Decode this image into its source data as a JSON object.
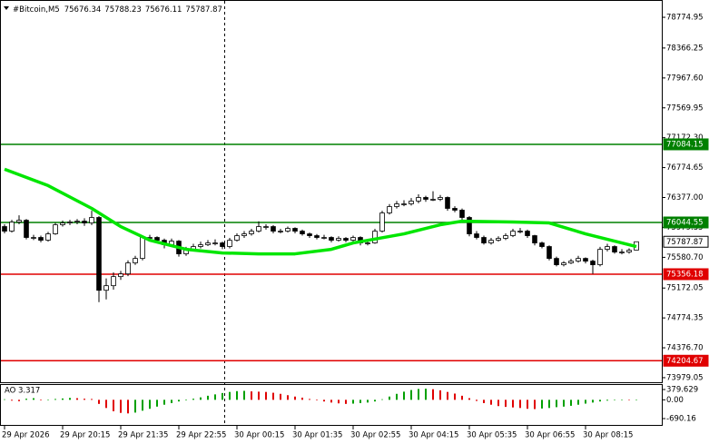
{
  "chart_data": {
    "type": "candlestick",
    "title": "#Bitcoin,M5",
    "xlim": [
      -0.625,
      90.5
    ],
    "ylim": [
      73918,
      78993
    ],
    "xticks": [
      {
        "value": 0,
        "label": "29 Apr 2026"
      },
      {
        "value": 8,
        "label": "29 Apr 20:15"
      },
      {
        "value": 16,
        "label": "29 Apr 21:35"
      },
      {
        "value": 24,
        "label": "29 Apr 22:55"
      },
      {
        "value": 32,
        "label": "30 Apr 00:15"
      },
      {
        "value": 40,
        "label": "30 Apr 01:35"
      },
      {
        "value": 48,
        "label": "30 Apr 02:55"
      },
      {
        "value": 56,
        "label": "30 Apr 04:15"
      },
      {
        "value": 64,
        "label": "30 Apr 05:35"
      },
      {
        "value": 72,
        "label": "30 Apr 06:55"
      },
      {
        "value": 80,
        "label": "30 Apr 08:15"
      }
    ],
    "yticks": [
      78774.95,
      78366.25,
      {
        "value": 77967.6,
        "label": "77967.60"
      },
      77569.95,
      {
        "value": 77172.3,
        "label": "77172.30"
      },
      76774.65,
      {
        "value": 76377,
        "label": "76377.00"
      },
      75979.35,
      {
        "value": 75580.7,
        "label": "75580.70"
      },
      75172.05,
      74774.35,
      {
        "value": 74376.7,
        "label": "74376.70"
      },
      73979.05
    ],
    "bull_color": "#ffffff",
    "bear_color": "#000000",
    "candles": [
      [
        75990,
        76020,
        75900,
        75929
      ],
      [
        75929,
        76080,
        75910,
        76050
      ],
      [
        76050,
        76140,
        76020,
        76074
      ],
      [
        76074,
        76090,
        75820,
        75845
      ],
      [
        75845,
        75880,
        75810,
        75845
      ],
      [
        75845,
        75870,
        75780,
        75808
      ],
      [
        75808,
        75920,
        75790,
        75893
      ],
      [
        75893,
        76040,
        75880,
        76014
      ],
      [
        76014,
        76070,
        75990,
        76038
      ],
      [
        76038,
        76080,
        76010,
        76050
      ],
      [
        76050,
        76090,
        76020,
        76062
      ],
      [
        76062,
        76100,
        76000,
        76038
      ],
      [
        76038,
        76200,
        76010,
        76111
      ],
      [
        76111,
        76130,
        74985,
        75142
      ],
      [
        75142,
        75300,
        75020,
        75203
      ],
      [
        75203,
        75380,
        75150,
        75324
      ],
      [
        75324,
        75400,
        75280,
        75360
      ],
      [
        75360,
        75540,
        75330,
        75506
      ],
      [
        75506,
        75600,
        75480,
        75566
      ],
      [
        75566,
        75870,
        75540,
        75845
      ],
      [
        75845,
        75880,
        75800,
        75845
      ],
      [
        75845,
        75860,
        75770,
        75808
      ],
      [
        75808,
        75830,
        75700,
        75748
      ],
      [
        75748,
        75830,
        75720,
        75796
      ],
      [
        75796,
        75810,
        75590,
        75627
      ],
      [
        75627,
        75720,
        75600,
        75687
      ],
      [
        75687,
        75760,
        75660,
        75724
      ],
      [
        75724,
        75790,
        75700,
        75748
      ],
      [
        75748,
        75810,
        75730,
        75772
      ],
      [
        75772,
        75820,
        75740,
        75772
      ],
      [
        75772,
        75790,
        75690,
        75724
      ],
      [
        75724,
        75840,
        75700,
        75808
      ],
      [
        75808,
        75900,
        75790,
        75869
      ],
      [
        75869,
        75930,
        75840,
        75893
      ],
      [
        75893,
        75960,
        75870,
        75929
      ],
      [
        75929,
        76060,
        75910,
        75990
      ],
      [
        75990,
        76020,
        75950,
        75990
      ],
      [
        75990,
        76010,
        75900,
        75929
      ],
      [
        75929,
        75960,
        75900,
        75929
      ],
      [
        75929,
        75990,
        75910,
        75966
      ],
      [
        75966,
        75980,
        75900,
        75929
      ],
      [
        75929,
        75950,
        75870,
        75893
      ],
      [
        75893,
        75910,
        75840,
        75869
      ],
      [
        75869,
        75890,
        75820,
        75845
      ],
      [
        75845,
        75880,
        75820,
        75845
      ],
      [
        75845,
        75860,
        75780,
        75808
      ],
      [
        75808,
        75860,
        75790,
        75833
      ],
      [
        75833,
        75850,
        75780,
        75808
      ],
      [
        75808,
        75870,
        75790,
        75845
      ],
      [
        75845,
        75860,
        75740,
        75772
      ],
      [
        75772,
        75800,
        75740,
        75772
      ],
      [
        75772,
        75960,
        75760,
        75929
      ],
      [
        75929,
        76200,
        75910,
        76171
      ],
      [
        76171,
        76290,
        76150,
        76256
      ],
      [
        76256,
        76330,
        76230,
        76292
      ],
      [
        76292,
        76340,
        76260,
        76292
      ],
      [
        76292,
        76370,
        76270,
        76329
      ],
      [
        76329,
        76420,
        76300,
        76377
      ],
      [
        76377,
        76400,
        76320,
        76353
      ],
      [
        76353,
        76460,
        76330,
        76353
      ],
      [
        76353,
        76410,
        76330,
        76377
      ],
      [
        76377,
        76390,
        76200,
        76232
      ],
      [
        76232,
        76260,
        76180,
        76208
      ],
      [
        76208,
        76230,
        76080,
        76111
      ],
      [
        76111,
        76130,
        75860,
        75893
      ],
      [
        75893,
        75930,
        75820,
        75845
      ],
      [
        75845,
        75870,
        75750,
        75772
      ],
      [
        75772,
        75840,
        75750,
        75808
      ],
      [
        75808,
        75860,
        75790,
        75833
      ],
      [
        75833,
        75900,
        75810,
        75869
      ],
      [
        75869,
        75960,
        75850,
        75929
      ],
      [
        75929,
        75970,
        75900,
        75929
      ],
      [
        75929,
        75950,
        75840,
        75869
      ],
      [
        75869,
        75880,
        75740,
        75772
      ],
      [
        75772,
        75790,
        75700,
        75724
      ],
      [
        75724,
        75740,
        75540,
        75566
      ],
      [
        75566,
        75590,
        75460,
        75482
      ],
      [
        75482,
        75530,
        75460,
        75506
      ],
      [
        75506,
        75560,
        75490,
        75530
      ],
      [
        75530,
        75600,
        75510,
        75566
      ],
      [
        75566,
        75580,
        75500,
        75530
      ],
      [
        75530,
        75550,
        75360,
        75482
      ],
      [
        75482,
        75720,
        75460,
        75687
      ],
      [
        75687,
        75760,
        75660,
        75724
      ],
      [
        75724,
        75740,
        75630,
        75651
      ],
      [
        75651,
        75690,
        75620,
        75651
      ],
      [
        75651,
        75700,
        75630,
        75675
      ],
      [
        75676.34,
        75788.23,
        75676.11,
        75787.87
      ]
    ],
    "ma": {
      "color": "#00e600",
      "x": [
        0,
        6,
        12,
        16,
        20,
        25,
        30,
        35,
        40,
        45,
        48,
        55,
        60,
        63,
        70,
        75,
        80,
        85,
        87
      ],
      "values": [
        76753,
        76535,
        76232,
        75990,
        75808,
        75687,
        75639,
        75627,
        75627,
        75687,
        75772,
        75893,
        76014,
        76062,
        76050,
        76038,
        75893,
        75772,
        75724
      ]
    },
    "levels": [
      {
        "value": 77084.15,
        "color": "#008000"
      },
      {
        "value": 76044.55,
        "color": "#008000"
      },
      {
        "value": 75356.18,
        "color": "#e00000"
      },
      {
        "value": 74204.67,
        "color": "#e00000"
      }
    ],
    "ao": {
      "name": "AO",
      "up_color": "#00a000",
      "down_color": "#e00000",
      "ylim": [
        -958,
        580
      ],
      "yticks": [
        379.629,
        {
          "value": 0,
          "label": "0.00"
        },
        -690.16
      ],
      "values": [
        20,
        -30,
        -50,
        40,
        60,
        -20,
        10,
        30,
        50,
        70,
        60,
        40,
        30,
        -150,
        -300,
        -420,
        -480,
        -500,
        -470,
        -400,
        -330,
        -250,
        -180,
        -120,
        -60,
        -20,
        40,
        90,
        150,
        200,
        250,
        290,
        320,
        330,
        310,
        300,
        290,
        260,
        220,
        170,
        120,
        80,
        30,
        -20,
        -60,
        -100,
        -130,
        -150,
        -140,
        -120,
        -100,
        -60,
        20,
        120,
        220,
        300,
        360,
        400,
        410,
        390,
        350,
        290,
        230,
        150,
        60,
        -40,
        -120,
        -180,
        -230,
        -260,
        -280,
        -300,
        -330,
        -340,
        -320,
        -300,
        -270,
        -250,
        -220,
        -180,
        -140,
        -100,
        -60,
        -30,
        -10,
        10,
        0,
        3.317
      ]
    }
  }
}
